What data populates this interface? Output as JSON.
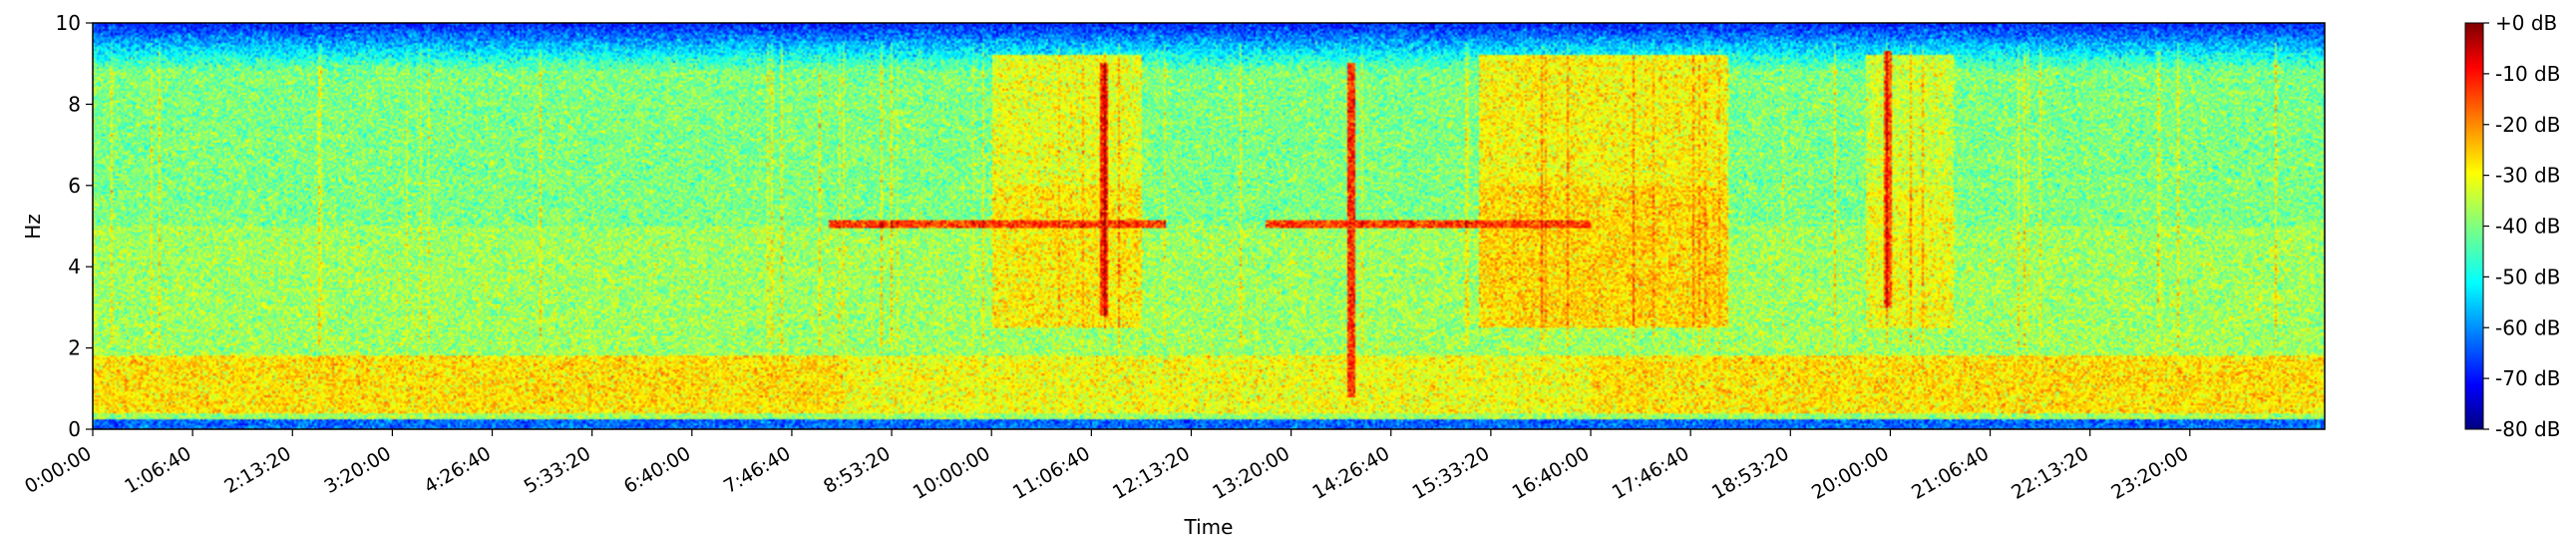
{
  "chart_data": {
    "type": "heatmap",
    "title": "",
    "xlabel": "Time",
    "ylabel": "Hz",
    "ylim": [
      0,
      10
    ],
    "xlim_seconds": [
      0,
      86400
    ],
    "x_ticks": [
      {
        "seconds": 0,
        "label": "0:00:00"
      },
      {
        "seconds": 4000,
        "label": "1:06:40"
      },
      {
        "seconds": 8000,
        "label": "2:13:20"
      },
      {
        "seconds": 12000,
        "label": "3:20:00"
      },
      {
        "seconds": 16000,
        "label": "4:26:40"
      },
      {
        "seconds": 20000,
        "label": "5:33:20"
      },
      {
        "seconds": 24000,
        "label": "6:40:00"
      },
      {
        "seconds": 28000,
        "label": "7:46:40"
      },
      {
        "seconds": 32000,
        "label": "8:53:20"
      },
      {
        "seconds": 36000,
        "label": "10:00:00"
      },
      {
        "seconds": 40000,
        "label": "11:06:40"
      },
      {
        "seconds": 44000,
        "label": "12:13:20"
      },
      {
        "seconds": 48000,
        "label": "13:20:00"
      },
      {
        "seconds": 52000,
        "label": "14:26:40"
      },
      {
        "seconds": 56000,
        "label": "15:33:20"
      },
      {
        "seconds": 60000,
        "label": "16:40:00"
      },
      {
        "seconds": 64000,
        "label": "17:46:40"
      },
      {
        "seconds": 68000,
        "label": "18:53:20"
      },
      {
        "seconds": 72000,
        "label": "20:00:00"
      },
      {
        "seconds": 76000,
        "label": "21:06:40"
      },
      {
        "seconds": 80000,
        "label": "22:13:20"
      },
      {
        "seconds": 84000,
        "label": "23:20:00"
      }
    ],
    "y_ticks": [
      0,
      2,
      4,
      6,
      8,
      10
    ],
    "colorbar": {
      "colormap": "jet",
      "range_db": [
        -80,
        0
      ],
      "ticks": [
        {
          "value": 0,
          "label": "+0 dB"
        },
        {
          "value": -10,
          "label": "-10 dB"
        },
        {
          "value": -20,
          "label": "-20 dB"
        },
        {
          "value": -30,
          "label": "-30 dB"
        },
        {
          "value": -40,
          "label": "-40 dB"
        },
        {
          "value": -50,
          "label": "-50 dB"
        },
        {
          "value": -60,
          "label": "-60 dB"
        },
        {
          "value": -70,
          "label": "-70 dB"
        },
        {
          "value": -80,
          "label": "-80 dB"
        }
      ]
    },
    "features": {
      "background_db": -40,
      "low_band": {
        "hz": [
          0.4,
          1.8
        ],
        "db": -28
      },
      "high_rolloff": {
        "hz": [
          9.0,
          10.0
        ],
        "db": -68
      },
      "tones": [
        {
          "hz": 5.05,
          "t_start": 29500,
          "t_end": 43000,
          "db": -15
        },
        {
          "hz": 5.05,
          "t_start": 47000,
          "t_end": 60000,
          "db": -15
        }
      ],
      "active_windows": [
        {
          "t_start": 36000,
          "t_end": 42000,
          "db": -30
        },
        {
          "t_start": 55500,
          "t_end": 65500,
          "db": -28
        },
        {
          "t_start": 71000,
          "t_end": 74500,
          "db": -32
        }
      ],
      "spikes": [
        {
          "t": 40500,
          "hz_range": [
            2.8,
            9.0
          ],
          "db": -12
        },
        {
          "t": 50400,
          "hz_range": [
            0.8,
            9.0
          ],
          "db": -12
        },
        {
          "t": 71900,
          "hz_range": [
            3.0,
            9.3
          ],
          "db": -15
        }
      ]
    }
  }
}
